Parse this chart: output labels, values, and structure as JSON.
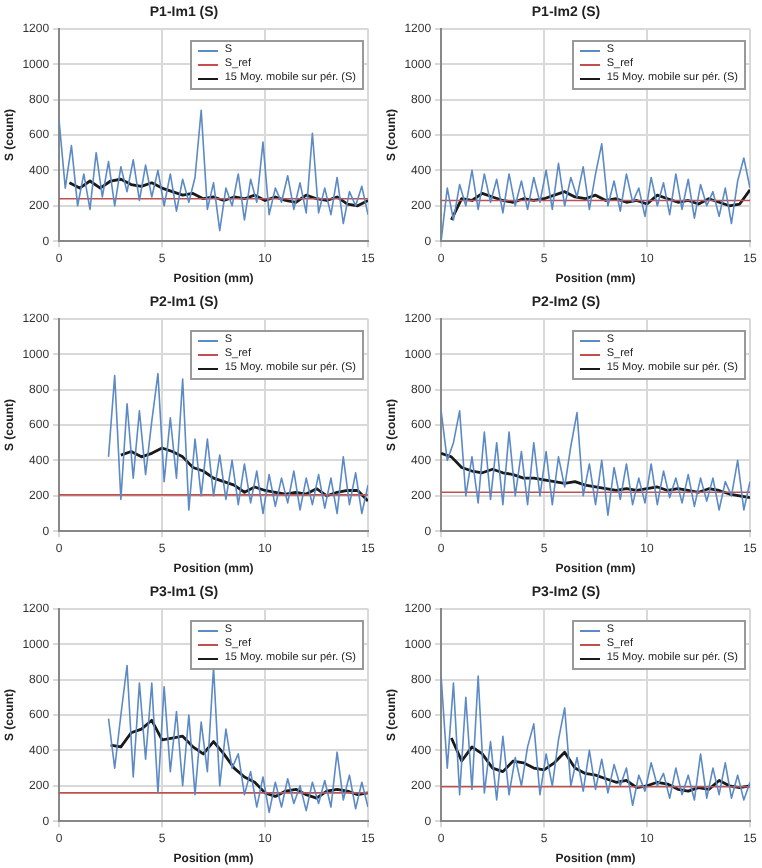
{
  "chart_data": [
    {
      "type": "line",
      "title": "P1-Im1 (S)",
      "xlabel": "Position (mm)",
      "ylabel": "S (count)",
      "xlim": [
        0,
        15
      ],
      "xticks": [
        0,
        5,
        10,
        15
      ],
      "ylim": [
        0,
        1200
      ],
      "yticks": [
        0,
        200,
        400,
        600,
        800,
        1000,
        1200
      ],
      "grid": true,
      "legend": "top right",
      "series": [
        {
          "name": "S",
          "color": "#5b8ac6",
          "x": [
            0,
            0.3,
            0.6,
            0.9,
            1.2,
            1.5,
            1.8,
            2.1,
            2.4,
            2.7,
            3,
            3.3,
            3.6,
            3.9,
            4.2,
            4.5,
            4.8,
            5.1,
            5.4,
            5.7,
            6,
            6.3,
            6.6,
            6.9,
            7.2,
            7.5,
            7.8,
            8.1,
            8.4,
            8.7,
            9,
            9.3,
            9.6,
            9.9,
            10.2,
            10.5,
            10.8,
            11.1,
            11.4,
            11.7,
            12,
            12.3,
            12.6,
            12.9,
            13.2,
            13.5,
            13.8,
            14.1,
            14.4,
            14.7,
            15
          ],
          "values": [
            680,
            300,
            540,
            200,
            380,
            180,
            500,
            250,
            450,
            200,
            420,
            280,
            460,
            230,
            430,
            250,
            400,
            200,
            380,
            170,
            350,
            220,
            360,
            740,
            180,
            330,
            60,
            300,
            200,
            380,
            120,
            350,
            220,
            560,
            150,
            300,
            220,
            370,
            180,
            330,
            160,
            610,
            160,
            300,
            150,
            360,
            100,
            280,
            200,
            310,
            150
          ]
        },
        {
          "name": "S_ref",
          "color": "#c0504d",
          "x": [
            0,
            15
          ],
          "values": [
            240,
            240
          ]
        },
        {
          "name": "15 Moy. mobile sur pér. (S)",
          "color": "#1a1a1a",
          "x": [
            0.5,
            1,
            1.5,
            2,
            2.5,
            3,
            3.5,
            4,
            4.5,
            5,
            5.5,
            6,
            6.5,
            7,
            7.5,
            8,
            8.5,
            9,
            9.5,
            10,
            10.5,
            11,
            11.5,
            12,
            12.5,
            13,
            13.5,
            14,
            14.5,
            15
          ],
          "values": [
            330,
            300,
            340,
            300,
            340,
            350,
            320,
            310,
            330,
            300,
            280,
            260,
            270,
            240,
            250,
            230,
            250,
            240,
            260,
            230,
            250,
            230,
            220,
            260,
            240,
            230,
            250,
            210,
            200,
            230
          ]
        }
      ]
    },
    {
      "type": "line",
      "title": "P1-Im2 (S)",
      "xlabel": "Position (mm)",
      "ylabel": "S (count)",
      "xlim": [
        0,
        15
      ],
      "xticks": [
        0,
        5,
        10,
        15
      ],
      "ylim": [
        0,
        1200
      ],
      "yticks": [
        0,
        200,
        400,
        600,
        800,
        1000,
        1200
      ],
      "grid": true,
      "legend": "top right",
      "series": [
        {
          "name": "S",
          "color": "#5b8ac6",
          "x": [
            0,
            0.3,
            0.6,
            0.9,
            1.2,
            1.5,
            1.8,
            2.1,
            2.4,
            2.7,
            3,
            3.3,
            3.6,
            3.9,
            4.2,
            4.5,
            4.8,
            5.1,
            5.4,
            5.7,
            6,
            6.3,
            6.6,
            6.9,
            7.2,
            7.5,
            7.8,
            8.1,
            8.4,
            8.7,
            9,
            9.3,
            9.6,
            9.9,
            10.2,
            10.5,
            10.8,
            11.1,
            11.4,
            11.7,
            12,
            12.3,
            12.6,
            12.9,
            13.2,
            13.5,
            13.8,
            14.1,
            14.4,
            14.7,
            15
          ],
          "values": [
            0,
            300,
            120,
            320,
            200,
            400,
            180,
            380,
            220,
            350,
            160,
            380,
            200,
            340,
            180,
            360,
            220,
            400,
            180,
            440,
            200,
            360,
            250,
            420,
            180,
            380,
            550,
            200,
            340,
            170,
            380,
            220,
            300,
            140,
            360,
            200,
            330,
            150,
            380,
            180,
            350,
            130,
            320,
            200,
            280,
            140,
            300,
            100,
            340,
            470,
            300
          ]
        },
        {
          "name": "S_ref",
          "color": "#c0504d",
          "x": [
            0,
            15
          ],
          "values": [
            230,
            230
          ]
        },
        {
          "name": "15 Moy. mobile sur pér. (S)",
          "color": "#1a1a1a",
          "x": [
            0.5,
            1,
            1.5,
            2,
            2.5,
            3,
            3.5,
            4,
            4.5,
            5,
            5.5,
            6,
            6.5,
            7,
            7.5,
            8,
            8.5,
            9,
            9.5,
            10,
            10.5,
            11,
            11.5,
            12,
            12.5,
            13,
            13.5,
            14,
            14.5,
            15
          ],
          "values": [
            120,
            240,
            230,
            270,
            250,
            230,
            220,
            240,
            230,
            240,
            260,
            280,
            250,
            240,
            260,
            230,
            240,
            220,
            230,
            210,
            260,
            240,
            220,
            230,
            210,
            240,
            220,
            200,
            210,
            290
          ]
        }
      ]
    },
    {
      "type": "line",
      "title": "P2-Im1 (S)",
      "xlabel": "Position (mm)",
      "ylabel": "S (count)",
      "xlim": [
        0,
        15
      ],
      "xticks": [
        0,
        5,
        10,
        15
      ],
      "ylim": [
        0,
        1200
      ],
      "yticks": [
        0,
        200,
        400,
        600,
        800,
        1000,
        1200
      ],
      "grid": true,
      "legend": "top right",
      "series": [
        {
          "name": "S",
          "color": "#5b8ac6",
          "x": [
            2.4,
            2.7,
            3,
            3.3,
            3.6,
            3.9,
            4.2,
            4.5,
            4.8,
            5.1,
            5.4,
            5.7,
            6,
            6.3,
            6.6,
            6.9,
            7.2,
            7.5,
            7.8,
            8.1,
            8.4,
            8.7,
            9,
            9.3,
            9.6,
            9.9,
            10.2,
            10.5,
            10.8,
            11.1,
            11.4,
            11.7,
            12,
            12.3,
            12.6,
            12.9,
            13.2,
            13.5,
            13.8,
            14.1,
            14.4,
            14.7,
            15
          ],
          "values": [
            420,
            880,
            180,
            720,
            300,
            680,
            320,
            620,
            890,
            280,
            640,
            300,
            860,
            120,
            520,
            200,
            520,
            200,
            430,
            180,
            400,
            150,
            380,
            160,
            340,
            100,
            320,
            140,
            300,
            160,
            340,
            120,
            300,
            150,
            320,
            130,
            300,
            100,
            420,
            150,
            330,
            100,
            260
          ]
        },
        {
          "name": "S_ref",
          "color": "#c0504d",
          "x": [
            0,
            15
          ],
          "values": [
            205,
            205
          ]
        },
        {
          "name": "15 Moy. mobile sur pér. (S)",
          "color": "#1a1a1a",
          "x": [
            3,
            3.5,
            4,
            4.5,
            5,
            5.5,
            6,
            6.5,
            7,
            7.5,
            8,
            8.5,
            9,
            9.5,
            10,
            10.5,
            11,
            11.5,
            12,
            12.5,
            13,
            13.5,
            14,
            14.5,
            15
          ],
          "values": [
            430,
            450,
            420,
            440,
            470,
            450,
            420,
            360,
            340,
            300,
            280,
            260,
            220,
            250,
            230,
            220,
            210,
            220,
            210,
            240,
            200,
            220,
            230,
            230,
            170
          ]
        }
      ]
    },
    {
      "type": "line",
      "title": "P2-Im2 (S)",
      "xlabel": "Position (mm)",
      "ylabel": "S (count)",
      "xlim": [
        0,
        15
      ],
      "xticks": [
        0,
        5,
        10,
        15
      ],
      "ylim": [
        0,
        1200
      ],
      "yticks": [
        0,
        200,
        400,
        600,
        800,
        1000,
        1200
      ],
      "grid": true,
      "legend": "top right",
      "series": [
        {
          "name": "S",
          "color": "#5b8ac6",
          "x": [
            0,
            0.3,
            0.6,
            0.9,
            1.2,
            1.5,
            1.8,
            2.1,
            2.4,
            2.7,
            3,
            3.3,
            3.6,
            3.9,
            4.2,
            4.5,
            4.8,
            5.1,
            5.4,
            5.7,
            6,
            6.3,
            6.6,
            6.9,
            7.2,
            7.5,
            7.8,
            8.1,
            8.4,
            8.7,
            9,
            9.3,
            9.6,
            9.9,
            10.2,
            10.5,
            10.8,
            11.1,
            11.4,
            11.7,
            12,
            12.3,
            12.6,
            12.9,
            13.2,
            13.5,
            13.8,
            14.1,
            14.4,
            14.7,
            15
          ],
          "values": [
            680,
            400,
            500,
            680,
            200,
            420,
            160,
            560,
            180,
            500,
            150,
            560,
            200,
            450,
            150,
            500,
            200,
            450,
            150,
            420,
            250,
            480,
            670,
            200,
            380,
            150,
            400,
            90,
            360,
            180,
            380,
            150,
            300,
            160,
            380,
            150,
            340,
            190,
            300,
            160,
            320,
            140,
            300,
            170,
            300,
            120,
            280,
            200,
            400,
            120,
            280
          ]
        },
        {
          "name": "S_ref",
          "color": "#c0504d",
          "x": [
            0,
            15
          ],
          "values": [
            220,
            220
          ]
        },
        {
          "name": "15 Moy. mobile sur pér. (S)",
          "color": "#1a1a1a",
          "x": [
            0,
            0.5,
            1,
            1.5,
            2,
            2.5,
            3,
            3.5,
            4,
            4.5,
            5,
            5.5,
            6,
            6.5,
            7,
            7.5,
            8,
            8.5,
            9,
            9.5,
            10,
            10.5,
            11,
            11.5,
            12,
            12.5,
            13,
            13.5,
            14,
            14.5,
            15
          ],
          "values": [
            440,
            420,
            360,
            340,
            330,
            350,
            330,
            320,
            300,
            300,
            290,
            280,
            270,
            280,
            260,
            250,
            240,
            230,
            240,
            230,
            240,
            250,
            230,
            240,
            230,
            220,
            240,
            230,
            210,
            200,
            190
          ]
        }
      ]
    },
    {
      "type": "line",
      "title": "P3-Im1 (S)",
      "xlabel": "Position (mm)",
      "ylabel": "S (count)",
      "xlim": [
        0,
        15
      ],
      "xticks": [
        0,
        5,
        10,
        15
      ],
      "ylim": [
        0,
        1200
      ],
      "yticks": [
        0,
        200,
        400,
        600,
        800,
        1000,
        1200
      ],
      "grid": true,
      "legend": "top right",
      "series": [
        {
          "name": "S",
          "color": "#5b8ac6",
          "x": [
            2.4,
            2.7,
            3,
            3.3,
            3.6,
            3.9,
            4.2,
            4.5,
            4.8,
            5.1,
            5.4,
            5.7,
            6,
            6.3,
            6.6,
            6.9,
            7.2,
            7.5,
            7.8,
            8.1,
            8.4,
            8.7,
            9,
            9.3,
            9.6,
            9.9,
            10.2,
            10.5,
            10.8,
            11.1,
            11.4,
            11.7,
            12,
            12.3,
            12.6,
            12.9,
            13.2,
            13.5,
            13.8,
            14.1,
            14.4,
            14.7,
            15
          ],
          "values": [
            580,
            300,
            600,
            880,
            250,
            780,
            350,
            780,
            160,
            760,
            280,
            620,
            200,
            600,
            150,
            560,
            280,
            870,
            200,
            520,
            300,
            380,
            150,
            280,
            80,
            250,
            50,
            220,
            80,
            240,
            100,
            200,
            60,
            220,
            100,
            230,
            80,
            390,
            120,
            260,
            70,
            220,
            80
          ]
        },
        {
          "name": "S_ref",
          "color": "#c0504d",
          "x": [
            0,
            15
          ],
          "values": [
            160,
            160
          ]
        },
        {
          "name": "15 Moy. mobile sur pér. (S)",
          "color": "#1a1a1a",
          "x": [
            2.5,
            3,
            3.5,
            4,
            4.5,
            5,
            5.5,
            6,
            6.5,
            7,
            7.5,
            8,
            8.5,
            9,
            9.5,
            10,
            10.5,
            11,
            11.5,
            12,
            12.5,
            13,
            13.5,
            14,
            14.5,
            15
          ],
          "values": [
            430,
            420,
            500,
            520,
            570,
            460,
            470,
            480,
            420,
            380,
            450,
            380,
            300,
            250,
            220,
            160,
            140,
            170,
            180,
            150,
            130,
            170,
            180,
            170,
            150,
            160
          ]
        }
      ]
    },
    {
      "type": "line",
      "title": "P3-Im2 (S)",
      "xlabel": "Position (mm)",
      "ylabel": "S (count)",
      "xlim": [
        0,
        15
      ],
      "xticks": [
        0,
        5,
        10,
        15
      ],
      "ylim": [
        0,
        1200
      ],
      "yticks": [
        0,
        200,
        400,
        600,
        800,
        1000,
        1200
      ],
      "grid": true,
      "legend": "top right",
      "series": [
        {
          "name": "S",
          "color": "#5b8ac6",
          "x": [
            0,
            0.3,
            0.6,
            0.9,
            1.2,
            1.5,
            1.8,
            2.1,
            2.4,
            2.7,
            3,
            3.3,
            3.6,
            3.9,
            4.2,
            4.5,
            4.8,
            5.1,
            5.4,
            5.7,
            6,
            6.3,
            6.6,
            6.9,
            7.2,
            7.5,
            7.8,
            8.1,
            8.4,
            8.7,
            9,
            9.3,
            9.6,
            9.9,
            10.2,
            10.5,
            10.8,
            11.1,
            11.4,
            11.7,
            12,
            12.3,
            12.6,
            12.9,
            13.2,
            13.5,
            13.8,
            14.1,
            14.4,
            14.7,
            15
          ],
          "values": [
            820,
            300,
            780,
            150,
            700,
            180,
            820,
            160,
            450,
            120,
            480,
            150,
            360,
            200,
            420,
            550,
            150,
            380,
            200,
            460,
            640,
            200,
            360,
            170,
            400,
            180,
            350,
            160,
            320,
            200,
            300,
            90,
            260,
            170,
            330,
            200,
            270,
            130,
            300,
            150,
            260,
            120,
            380,
            130,
            300,
            150,
            330,
            130,
            260,
            120,
            220
          ]
        },
        {
          "name": "S_ref",
          "color": "#c0504d",
          "x": [
            0,
            15
          ],
          "values": [
            195,
            195
          ]
        },
        {
          "name": "15 Moy. mobile sur pér. (S)",
          "color": "#1a1a1a",
          "x": [
            0.5,
            1,
            1.5,
            2,
            2.5,
            3,
            3.5,
            4,
            4.5,
            5,
            5.5,
            6,
            6.5,
            7,
            7.5,
            8,
            8.5,
            9,
            9.5,
            10,
            10.5,
            11,
            11.5,
            12,
            12.5,
            13,
            13.5,
            14,
            14.5,
            15
          ],
          "values": [
            470,
            340,
            420,
            380,
            300,
            280,
            340,
            330,
            300,
            290,
            330,
            390,
            300,
            270,
            260,
            240,
            220,
            230,
            190,
            200,
            220,
            210,
            180,
            170,
            190,
            180,
            230,
            200,
            190,
            200
          ]
        }
      ]
    }
  ]
}
